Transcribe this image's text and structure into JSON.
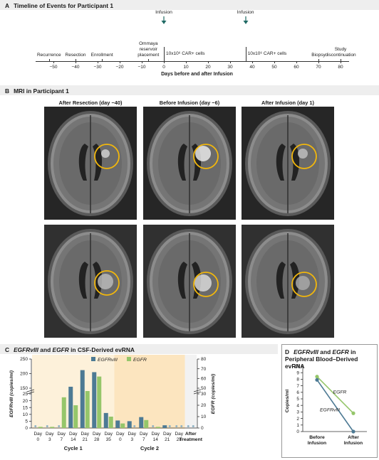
{
  "panelA": {
    "letter": "A",
    "title": "Timeline of Events for Participant 1",
    "events": [
      {
        "label": "Recurrence",
        "day": -52
      },
      {
        "label": "Resection",
        "day": -40
      },
      {
        "label": "Enrollment",
        "day": -28
      },
      {
        "label": "Ommaya\nreservoir\nplacement",
        "day": -7
      },
      {
        "label": "Biopsy",
        "day": 70
      },
      {
        "label": "Study\ndiscontinuation",
        "day": 80
      }
    ],
    "infusions": [
      {
        "label": "Infusion",
        "day": 0,
        "dose": "10x10⁶ CAR+ cells"
      },
      {
        "label": "Infusion",
        "day": 37,
        "dose": "10x10⁶ CAR+ cells"
      }
    ],
    "ticks": [
      -50,
      -40,
      -30,
      -20,
      -10,
      0,
      10,
      20,
      30,
      40,
      50,
      60,
      70,
      80
    ],
    "tick_labels": [
      "−50",
      "−40",
      "−30",
      "−20",
      "−10",
      "0",
      "10",
      "20",
      "30",
      "40",
      "50",
      "60",
      "70",
      "80"
    ],
    "axis_label": "Days before and after Infusion"
  },
  "panelB": {
    "letter": "B",
    "title": "MRI in Participant 1",
    "columns": [
      "After Resection (day −40)",
      "Before Infusion (day −6)",
      "After Infusion (day 1)"
    ]
  },
  "panelC": {
    "letter": "C",
    "title_parts": [
      "EGFRvIII",
      " and ",
      "EGFR",
      " in CSF-Derived evRNA"
    ]
  },
  "panelD": {
    "letter": "D",
    "title_parts": [
      "EGFRvIII",
      " and ",
      "EGFR",
      " in Peripheral Blood–Derived evRNA"
    ]
  },
  "colors": {
    "egfrviii": "#4d7a94",
    "egfr": "#95c66a",
    "cycle1_bg": "#fdf1da",
    "cycle2_bg": "#fce5bf",
    "after_bg": "#f2f2f2",
    "circle": "#f2b70c",
    "nd_marker": "#8fb2c4"
  },
  "chart_data": [
    {
      "type": "bar",
      "panel": "C",
      "title": "EGFRvIII and EGFR in CSF-Derived evRNA",
      "categories": [
        "Day 0",
        "Day 3",
        "Day 7",
        "Day 14",
        "Day 21",
        "Day 28",
        "Day 35",
        "Day 0",
        "Day 3",
        "Day 7",
        "Day 14",
        "Day 21",
        "Day 28",
        "After Treatment"
      ],
      "category_days": [
        "0",
        "3",
        "7",
        "14",
        "21",
        "28",
        "35",
        "0",
        "3",
        "7",
        "14",
        "21",
        "28",
        ""
      ],
      "category_day_word": "Day",
      "after_label": [
        "After",
        "Treatment"
      ],
      "groups": [
        {
          "label": "Cycle 1",
          "categories": [
            0,
            1,
            2,
            3,
            4,
            5,
            6
          ]
        },
        {
          "label": "Cycle 2",
          "categories": [
            7,
            8,
            9,
            10,
            11,
            12
          ]
        }
      ],
      "series": [
        {
          "name": "EGFRvIII",
          "axis": "left",
          "values": [
            0,
            0,
            0,
            155,
            212,
            205,
            11,
            5.5,
            5,
            8,
            0,
            2,
            0,
            0
          ]
        },
        {
          "name": "EGFR",
          "axis": "right",
          "values": [
            1,
            1,
            27,
            20,
            38,
            62,
            10,
            4,
            0,
            7,
            1,
            0,
            0,
            0
          ]
        }
      ],
      "left_axis": {
        "label": "EGFRvIII (copies/ml)",
        "scale": "broken",
        "lower_ticks": [
          0,
          5,
          10,
          15,
          20,
          25
        ],
        "upper_ticks": [
          150,
          200,
          250
        ],
        "ylim_lower": [
          0,
          25
        ],
        "ylim_upper": [
          150,
          250
        ]
      },
      "right_axis": {
        "label": "EGFR (copies/ml)",
        "scale": "broken",
        "lower_ticks": [
          0,
          10,
          20,
          30
        ],
        "upper_ticks": [
          50,
          60,
          70,
          80
        ],
        "ylim_lower": [
          0,
          30
        ],
        "ylim_upper": [
          50,
          80
        ]
      },
      "legend": "top-center"
    },
    {
      "type": "line",
      "panel": "D",
      "title": "EGFRvIII and EGFR in Peripheral Blood–Derived evRNA",
      "categories": [
        "Before Infusion",
        "After Infusion"
      ],
      "category_lines": [
        [
          "Before",
          "Infusion"
        ],
        [
          "After",
          "Infusion"
        ]
      ],
      "series": [
        {
          "name": "EGFR",
          "values": [
            8.4,
            2.8
          ]
        },
        {
          "name": "EGFRvIII",
          "values": [
            7.9,
            0
          ]
        }
      ],
      "ylabel": "Copies/ml",
      "yticks": [
        0,
        1,
        2,
        3,
        4,
        5,
        6,
        7,
        8,
        9,
        10
      ],
      "ylim": [
        0,
        10
      ]
    }
  ]
}
